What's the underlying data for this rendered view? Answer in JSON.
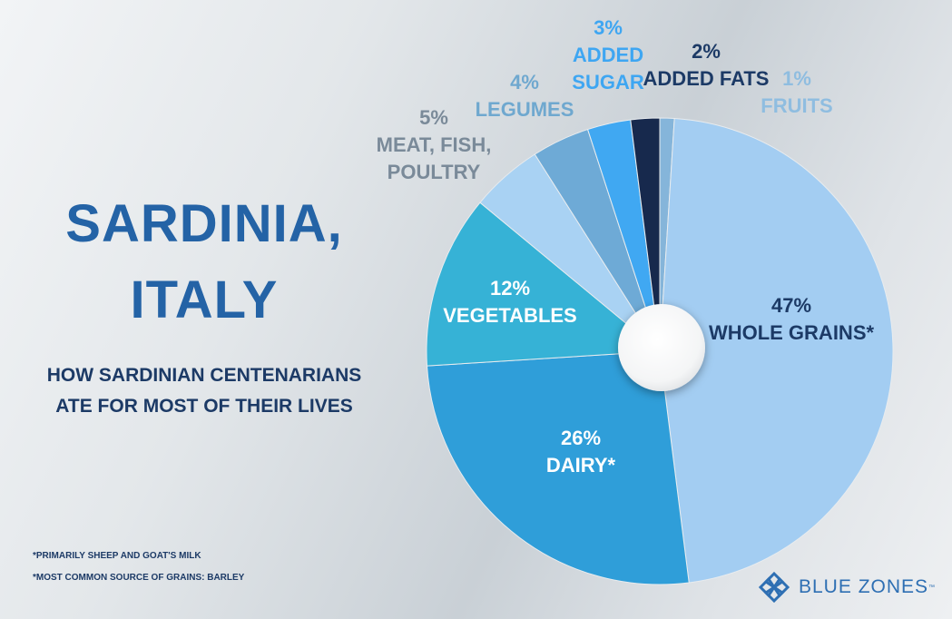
{
  "chart_data": {
    "type": "pie",
    "title": "SARDINIA, ITALY",
    "subtitle": "HOW SARDINIAN CENTENARIANS ATE FOR MOST OF THEIR LIVES",
    "categories": [
      "FRUITS",
      "WHOLE GRAINS*",
      "DAIRY*",
      "VEGETABLES",
      "MEAT, FISH, POULTRY",
      "LEGUMES",
      "ADDED SUGAR",
      "ADDED FATS"
    ],
    "values": [
      1,
      47,
      26,
      12,
      5,
      4,
      3,
      2
    ],
    "value_labels": [
      "1%",
      "47%",
      "26%",
      "12%",
      "5%",
      "4%",
      "3%",
      "2%"
    ],
    "colors": [
      "#85b5da",
      "#a3cdf2",
      "#2f9ed9",
      "#36b2d6",
      "#a9d2f3",
      "#6eaad6",
      "#40a8f2",
      "#17294d"
    ],
    "notes": [
      "*PRIMARILY SHEEP AND GOAT'S MILK",
      "*MOST COMMON SOURCE OF GRAINS: BARLEY"
    ]
  },
  "logo": {
    "text": "BLUE ZONES",
    "mark": "™"
  }
}
